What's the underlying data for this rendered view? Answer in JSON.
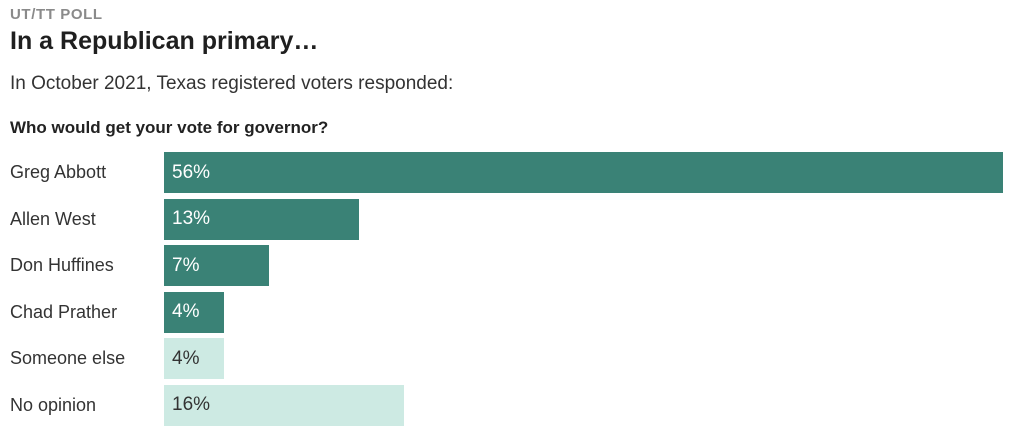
{
  "header": {
    "kicker": "UT/TT POLL",
    "title": "In a Republican primary…",
    "subtitle": "In October 2021, Texas registered voters responded:",
    "question": "Who would get your vote for governor?"
  },
  "colors": {
    "candidate_bar": "#3a8276",
    "other_bar": "#cdeae3",
    "candidate_value_text": "#ffffff",
    "other_value_text": "#333333",
    "kicker_text": "#8a8a8a",
    "title_text": "#1f1f1f",
    "body_text": "#333333"
  },
  "chart_data": {
    "type": "bar",
    "orientation": "horizontal",
    "title": "Who would get your vote for governor?",
    "categories": [
      "Greg Abbott",
      "Allen West",
      "Don Huffines",
      "Chad Prather",
      "Someone else",
      "No opinion"
    ],
    "values": [
      56,
      13,
      7,
      4,
      4,
      16
    ],
    "value_labels": [
      "56%",
      "13%",
      "7%",
      "4%",
      "4%",
      "16%"
    ],
    "bar_colors": [
      "#3a8276",
      "#3a8276",
      "#3a8276",
      "#3a8276",
      "#cdeae3",
      "#cdeae3"
    ],
    "value_label_colors": [
      "#ffffff",
      "#ffffff",
      "#ffffff",
      "#ffffff",
      "#333333",
      "#333333"
    ],
    "value_label_position": "inside-start",
    "xlim": [
      0,
      56
    ],
    "scale_note": "bars scaled so max value (56) fills track width",
    "grid": false,
    "legend": false
  }
}
